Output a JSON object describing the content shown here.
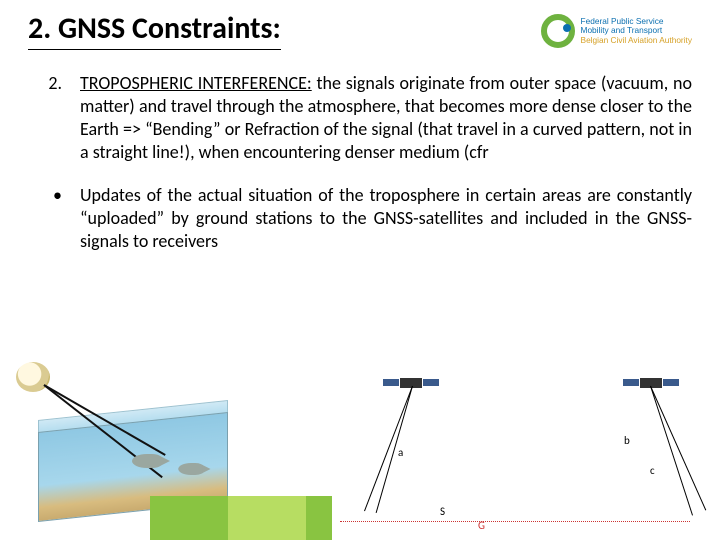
{
  "title": "2. GNSS Constraints:",
  "logo": {
    "line1": "Federal Public Service",
    "line2": "Mobility and Transport",
    "line3": "Belgian Civil Aviation Authority"
  },
  "items": [
    {
      "marker": "2.",
      "lead": "TROPOSPHERIC INTERFERENCE:",
      "rest": " the signals originate from outer space (vacuum, no matter) and travel through the atmosphere, that becomes more dense closer to the Earth => “Bending” or Refraction of the signal (that travel in a curved pattern, not in a straight line!), when encountering denser medium (cfr"
    },
    {
      "marker": "•",
      "lead": "",
      "rest": "Updates of the actual situation of the troposphere in certain areas are constantly “uploaded” by ground stations to the GNSS-satellites and included in the GNSS-signals to receivers"
    }
  ],
  "diagram": {
    "labels": {
      "S": "S",
      "G": "G",
      "a": "a",
      "b": "b",
      "c": "c"
    },
    "colors": {
      "ground_line": "#c33",
      "beam": "#000000",
      "sat_body": "#333333",
      "sat_panel": "#3a5a8c"
    }
  },
  "tank": {
    "colors": {
      "water_top": "#8fc8e3",
      "water_mid": "#a7d7ec",
      "sand": "#d8bc7f",
      "fish": "#9aa7a0",
      "ray": "#111111"
    }
  },
  "decor_colors": [
    "#89c441",
    "#b7dd62",
    "#89c441"
  ]
}
